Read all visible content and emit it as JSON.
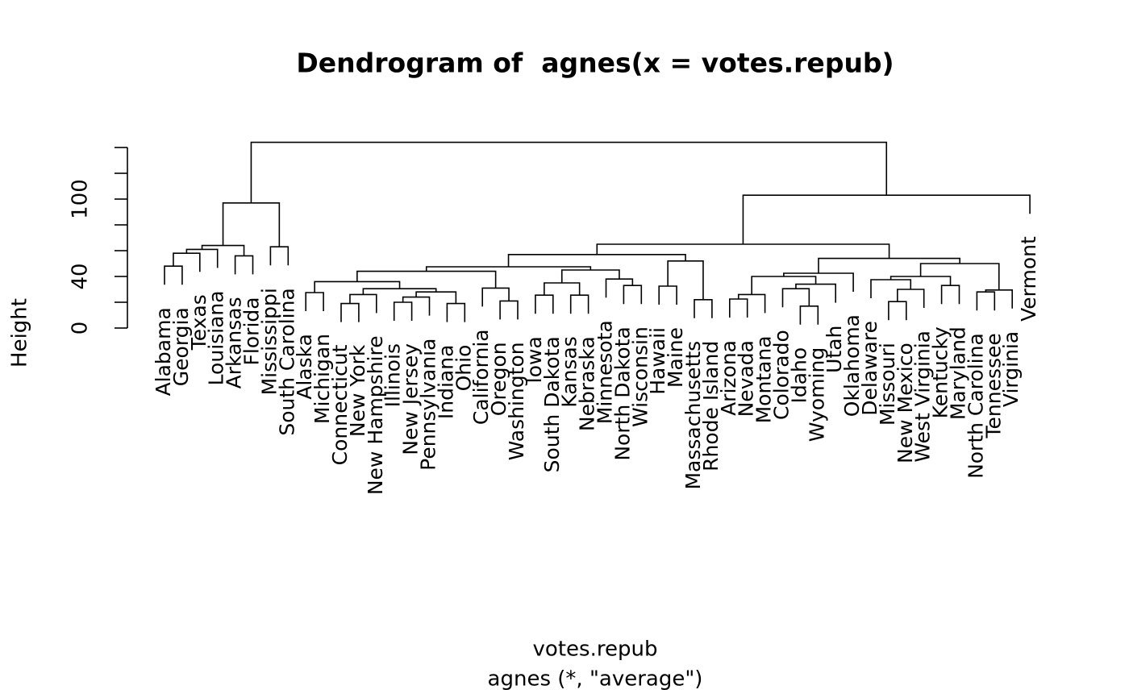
{
  "chart_data": {
    "type": "dendrogram",
    "title": "Dendrogram of  agnes(x = votes.repub)",
    "ylabel": "Height",
    "xlabel": "votes.repub",
    "subtitle": "agnes (*, \"average\")",
    "ylim": [
      0,
      144
    ],
    "yticks": [
      0,
      40,
      100
    ],
    "yticks_unlabeled": [
      20,
      60,
      80,
      120,
      140
    ],
    "color": "#000000",
    "tree": {
      "height": 144,
      "children": [
        {
          "height": 97,
          "children": [
            {
              "height": 64,
              "children": [
                {
                  "height": 61,
                  "children": [
                    {
                      "height": 58,
                      "children": [
                        {
                          "height": 48,
                          "children": [
                            {
                              "label": "Alabama"
                            },
                            {
                              "label": "Georgia"
                            }
                          ]
                        },
                        {
                          "label": "Texas"
                        }
                      ]
                    },
                    {
                      "label": "Louisiana"
                    }
                  ]
                },
                {
                  "height": 56,
                  "children": [
                    {
                      "label": "Arkansas"
                    },
                    {
                      "label": "Florida"
                    }
                  ]
                }
              ]
            },
            {
              "height": 63,
              "children": [
                {
                  "label": "Mississippi"
                },
                {
                  "label": "South Carolina"
                }
              ]
            }
          ]
        },
        {
          "height": 103,
          "children": [
            {
              "height": 65,
              "children": [
                {
                  "height": 57,
                  "children": [
                    {
                      "height": 47.5,
                      "children": [
                        {
                          "height": 44,
                          "children": [
                            {
                              "height": 36,
                              "children": [
                                {
                                  "height": 27.5,
                                  "children": [
                                    {
                                      "label": "Alaska"
                                    },
                                    {
                                      "label": "Michigan"
                                    }
                                  ]
                                },
                                {
                                  "height": 30.5,
                                  "children": [
                                    {
                                      "height": 26,
                                      "children": [
                                        {
                                          "height": 19,
                                          "children": [
                                            {
                                              "label": "Connecticut"
                                            },
                                            {
                                              "label": "New York"
                                            }
                                          ]
                                        },
                                        {
                                          "label": "New Hampshire"
                                        }
                                      ]
                                    },
                                    {
                                      "height": 28,
                                      "children": [
                                        {
                                          "height": 24,
                                          "children": [
                                            {
                                              "height": 20,
                                              "children": [
                                                {
                                                  "label": "Illinois"
                                                },
                                                {
                                                  "label": "New Jersey"
                                                }
                                              ]
                                            },
                                            {
                                              "label": "Pennsylvania"
                                            }
                                          ]
                                        },
                                        {
                                          "height": 19,
                                          "children": [
                                            {
                                              "label": "Indiana"
                                            },
                                            {
                                              "label": "Ohio"
                                            }
                                          ]
                                        }
                                      ]
                                    }
                                  ]
                                }
                              ]
                            },
                            {
                              "height": 31,
                              "children": [
                                {
                                  "label": "California"
                                },
                                {
                                  "height": 21,
                                  "children": [
                                    {
                                      "label": "Oregon"
                                    },
                                    {
                                      "label": "Washington"
                                    }
                                  ]
                                }
                              ]
                            }
                          ]
                        },
                        {
                          "height": 45,
                          "children": [
                            {
                              "height": 35,
                              "children": [
                                {
                                  "height": 25.5,
                                  "children": [
                                    {
                                      "label": "Iowa"
                                    },
                                    {
                                      "label": "South Dakota"
                                    }
                                  ]
                                },
                                {
                                  "height": 25.5,
                                  "children": [
                                    {
                                      "label": "Kansas"
                                    },
                                    {
                                      "label": "Nebraska"
                                    }
                                  ]
                                }
                              ]
                            },
                            {
                              "height": 38,
                              "children": [
                                {
                                  "label": "Minnesota"
                                },
                                {
                                  "height": 33,
                                  "children": [
                                    {
                                      "label": "North Dakota"
                                    },
                                    {
                                      "label": "Wisconsin"
                                    }
                                  ]
                                }
                              ]
                            }
                          ]
                        }
                      ]
                    },
                    {
                      "height": 52,
                      "children": [
                        {
                          "height": 32.5,
                          "children": [
                            {
                              "label": "Hawaii"
                            },
                            {
                              "label": "Maine"
                            }
                          ]
                        },
                        {
                          "height": 22,
                          "children": [
                            {
                              "label": "Massachusetts"
                            },
                            {
                              "label": "Rhode Island"
                            }
                          ]
                        }
                      ]
                    }
                  ]
                },
                {
                  "height": 54,
                  "children": [
                    {
                      "height": 42.5,
                      "children": [
                        {
                          "height": 40,
                          "children": [
                            {
                              "height": 26,
                              "children": [
                                {
                                  "height": 22.5,
                                  "children": [
                                    {
                                      "label": "Arizona"
                                    },
                                    {
                                      "label": "Nevada"
                                    }
                                  ]
                                },
                                {
                                  "label": "Montana"
                                }
                              ]
                            },
                            {
                              "height": 34,
                              "children": [
                                {
                                  "height": 30.5,
                                  "children": [
                                    {
                                      "label": "Colorado"
                                    },
                                    {
                                      "height": 17,
                                      "children": [
                                        {
                                          "label": "Idaho"
                                        },
                                        {
                                          "label": "Wyoming"
                                        }
                                      ]
                                    }
                                  ]
                                },
                                {
                                  "label": "Utah"
                                }
                              ]
                            }
                          ]
                        },
                        {
                          "label": "Oklahoma"
                        }
                      ]
                    },
                    {
                      "height": 50,
                      "children": [
                        {
                          "height": 40,
                          "children": [
                            {
                              "height": 37.5,
                              "children": [
                                {
                                  "label": "Delaware"
                                },
                                {
                                  "height": 30,
                                  "children": [
                                    {
                                      "height": 20.5,
                                      "children": [
                                        {
                                          "label": "Missouri"
                                        },
                                        {
                                          "label": "New Mexico"
                                        }
                                      ]
                                    },
                                    {
                                      "label": "West Virginia"
                                    }
                                  ]
                                }
                              ]
                            },
                            {
                              "height": 33,
                              "children": [
                                {
                                  "label": "Kentucky"
                                },
                                {
                                  "label": "Maryland"
                                }
                              ]
                            }
                          ]
                        },
                        {
                          "height": 29.5,
                          "children": [
                            {
                              "height": 28,
                              "children": [
                                {
                                  "label": "North Carolina"
                                },
                                {
                                  "label": "Tennessee"
                                }
                              ]
                            },
                            {
                              "label": "Virginia"
                            }
                          ]
                        }
                      ]
                    }
                  ]
                }
              ]
            },
            {
              "label": "Vermont"
            }
          ]
        }
      ]
    }
  }
}
